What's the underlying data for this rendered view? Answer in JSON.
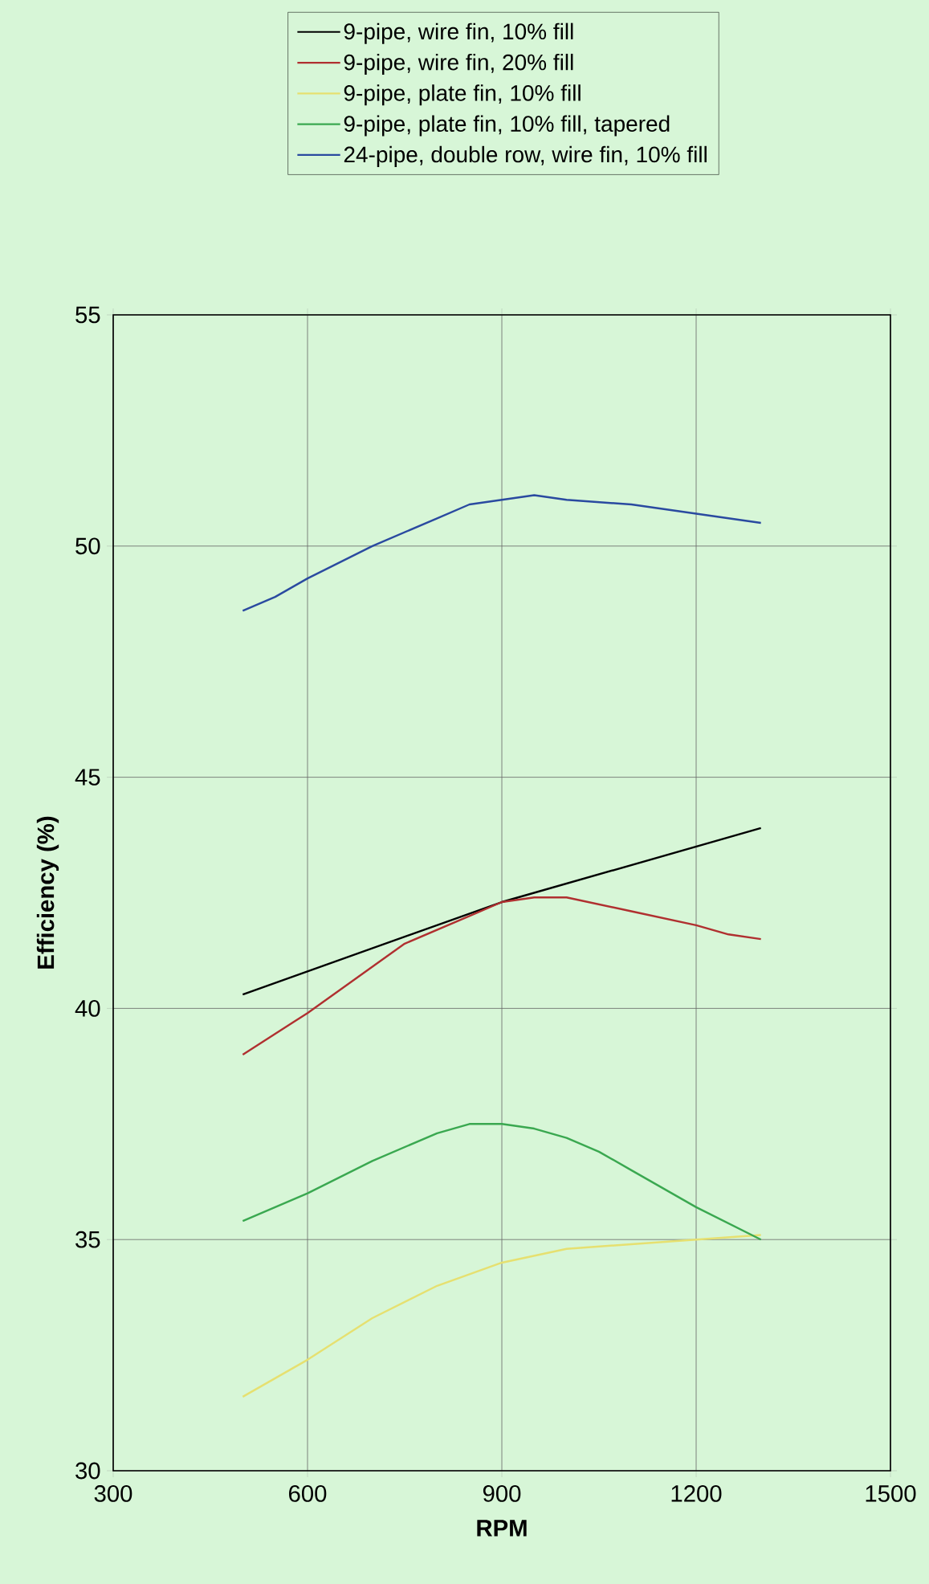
{
  "chart_data": {
    "type": "line",
    "xlabel": "RPM",
    "ylabel": "Efficiency (%)",
    "xlim": [
      300,
      1500
    ],
    "ylim": [
      30,
      55
    ],
    "xticks": [
      300,
      600,
      900,
      1200,
      1500
    ],
    "yticks": [
      30,
      35,
      40,
      45,
      50,
      55
    ],
    "grid": true,
    "legend": "top",
    "line_style": "solid",
    "marker": "none",
    "series": [
      {
        "name": "9-pipe, wire fin, 10% fill",
        "color": "#000000",
        "x": [
          500,
          900,
          1300
        ],
        "values": [
          40.3,
          42.3,
          43.9
        ]
      },
      {
        "name": "9-pipe, wire fin, 20% fill",
        "color": "#b03030",
        "x": [
          500,
          600,
          750,
          850,
          900,
          950,
          1000,
          1100,
          1200,
          1250,
          1300
        ],
        "values": [
          39.0,
          39.9,
          41.4,
          42.0,
          42.3,
          42.4,
          42.4,
          42.1,
          41.8,
          41.6,
          41.5
        ]
      },
      {
        "name": "9-pipe, plate fin, 10% fill",
        "color": "#e6e070",
        "x": [
          500,
          600,
          700,
          800,
          900,
          1000,
          1100,
          1200,
          1300
        ],
        "values": [
          31.6,
          32.4,
          33.3,
          34.0,
          34.5,
          34.8,
          34.9,
          35.0,
          35.1
        ]
      },
      {
        "name": "9-pipe, plate fin, 10% fill, tapered",
        "color": "#3aa850",
        "x": [
          500,
          600,
          700,
          750,
          800,
          850,
          900,
          950,
          1000,
          1050,
          1100,
          1200,
          1300
        ],
        "values": [
          35.4,
          36.0,
          36.7,
          37.0,
          37.3,
          37.5,
          37.5,
          37.4,
          37.2,
          36.9,
          36.5,
          35.7,
          35.0
        ]
      },
      {
        "name": "24-pipe, double row, wire fin, 10% fill",
        "color": "#2a4aa0",
        "x": [
          500,
          550,
          600,
          700,
          750,
          800,
          850,
          900,
          950,
          1000,
          1100,
          1200,
          1250,
          1300
        ],
        "values": [
          48.6,
          48.9,
          49.3,
          50.0,
          50.3,
          50.6,
          50.9,
          51.0,
          51.1,
          51.0,
          50.9,
          50.7,
          50.6,
          50.5
        ]
      }
    ]
  }
}
